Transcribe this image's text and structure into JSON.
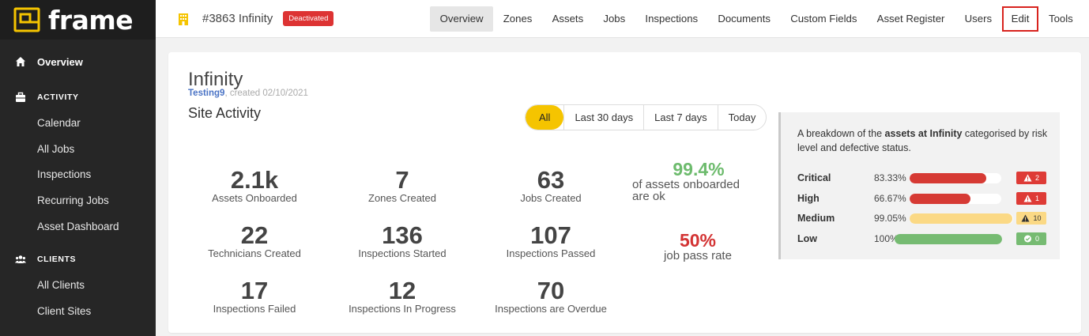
{
  "brand": {
    "name": "frame",
    "accent": "#f5c400"
  },
  "sidebar": {
    "overview": {
      "label": "Overview",
      "icon": "home-icon"
    },
    "sections": [
      {
        "label": "ACTIVITY",
        "icon": "briefcase-icon",
        "items": [
          "Calendar",
          "All Jobs",
          "Inspections",
          "Recurring Jobs",
          "Asset Dashboard"
        ]
      },
      {
        "label": "CLIENTS",
        "icon": "users-icon",
        "items": [
          "All Clients",
          "Client Sites"
        ]
      }
    ]
  },
  "header": {
    "site_title": "#3863 Infinity",
    "status_badge": "Deactivated",
    "tabs": [
      "Overview",
      "Zones",
      "Assets",
      "Jobs",
      "Inspections",
      "Documents",
      "Custom Fields",
      "Asset Register",
      "Users",
      "Edit",
      "Tools"
    ],
    "active_tab": "Overview",
    "highlighted_tab": "Edit"
  },
  "main": {
    "title": "Infinity",
    "created_by": "Testing9",
    "created_text": ", created 02/10/2021",
    "section_title": "Site Activity",
    "filters": [
      "All",
      "Last 30 days",
      "Last 7 days",
      "Today"
    ],
    "active_filter": "All",
    "stats": [
      {
        "value": "2.1k",
        "label": "Assets Onboarded"
      },
      {
        "value": "7",
        "label": "Zones Created"
      },
      {
        "value": "63",
        "label": "Jobs Created"
      },
      {
        "value": "22",
        "label": "Technicians Created"
      },
      {
        "value": "136",
        "label": "Inspections Started"
      },
      {
        "value": "107",
        "label": "Inspections Passed"
      },
      {
        "value": "17",
        "label": "Inspections Failed"
      },
      {
        "value": "12",
        "label": "Inspections In Progress"
      },
      {
        "value": "70",
        "label": "Inspections are Overdue"
      }
    ],
    "ok_rate": {
      "value": "99.4%",
      "label_line1": "of assets onboarded",
      "label_line2": "are ok",
      "color": "#6dbb6d"
    },
    "pass_rate": {
      "value": "50%",
      "label": "job pass rate",
      "color": "#d33333"
    }
  },
  "breakdown": {
    "desc_prefix": "A breakdown of the ",
    "desc_bold": "assets at Infinity",
    "desc_suffix": " categorised by risk level and defective status.",
    "rows": [
      {
        "level": "Critical",
        "pct": "83.33%",
        "fill": 0.8333,
        "bar_color": "#d63a34",
        "badge_count": "2",
        "badge_bg": "#de3b36",
        "badge_fg": "#ffffff",
        "badge_icon": "warning-icon"
      },
      {
        "level": "High",
        "pct": "66.67%",
        "fill": 0.6667,
        "bar_color": "#d63a34",
        "badge_count": "1",
        "badge_bg": "#de3b36",
        "badge_fg": "#ffffff",
        "badge_icon": "warning-icon"
      },
      {
        "level": "Medium",
        "pct": "99.05%",
        "fill": 0.9905,
        "bar_color": "#fbd985",
        "badge_count": "10",
        "badge_bg": "#fbd985",
        "badge_fg": "#333333",
        "badge_icon": "warning-icon"
      },
      {
        "level": "Low",
        "pct": "100%",
        "fill": 1.0,
        "bar_color": "#76bb72",
        "badge_count": "0",
        "badge_bg": "#76bb72",
        "badge_fg": "#ffffff",
        "badge_icon": "check-circle-icon"
      }
    ]
  }
}
